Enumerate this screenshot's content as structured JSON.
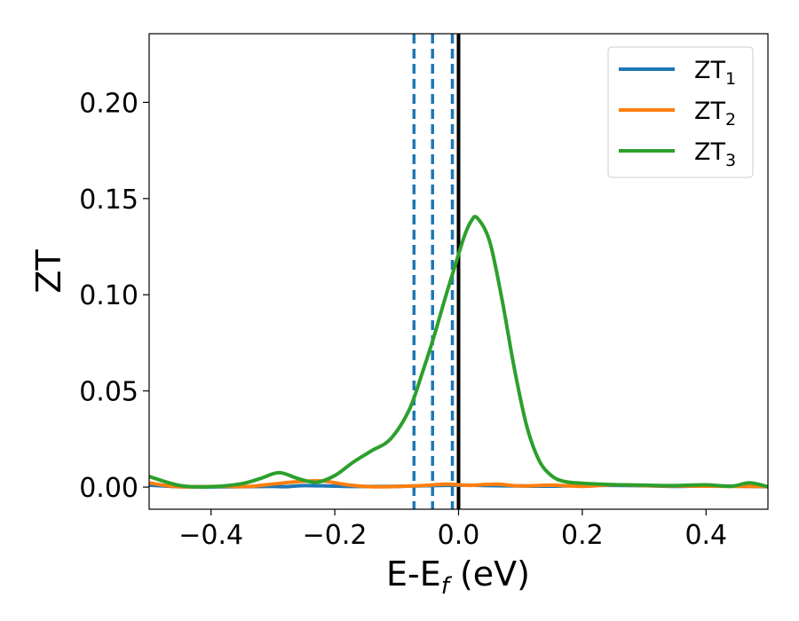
{
  "chart_data": {
    "type": "line",
    "xlabel_main": "E-E",
    "xlabel_sub": "f",
    "xlabel_unit": " (eV)",
    "ylabel": "ZT",
    "xlim": [
      -0.5,
      0.5
    ],
    "ylim": [
      -0.0115,
      0.2357
    ],
    "xticks": [
      -0.4,
      -0.2,
      0.0,
      0.2,
      0.4
    ],
    "xtick_labels": [
      "−0.4",
      "−0.2",
      "0.0",
      "0.2",
      "0.4"
    ],
    "yticks": [
      0.0,
      0.05,
      0.1,
      0.15,
      0.2
    ],
    "ytick_labels": [
      "0.00",
      "0.05",
      "0.10",
      "0.15",
      "0.20"
    ],
    "grid": false,
    "legend_position": "top-right",
    "series": [
      {
        "name_main": "ZT",
        "name_sub": "1",
        "color": "#1f77b4",
        "x": [
          -0.5,
          -0.45,
          -0.4,
          -0.35,
          -0.3,
          -0.28,
          -0.25,
          -0.2,
          -0.15,
          -0.1,
          -0.05,
          0.0,
          0.05,
          0.1,
          0.15,
          0.2,
          0.25,
          0.3,
          0.35,
          0.4,
          0.45,
          0.5
        ],
        "y": [
          0.001,
          0.0002,
          0.0001,
          0.0002,
          0.0004,
          0.0002,
          0.0008,
          0.0005,
          0.0003,
          0.0004,
          0.0007,
          0.001,
          0.0008,
          0.0006,
          0.0005,
          0.0008,
          0.0009,
          0.0007,
          0.0004,
          0.0006,
          0.0005,
          0.0002
        ]
      },
      {
        "name_main": "ZT",
        "name_sub": "2",
        "color": "#ff7f0e",
        "x": [
          -0.5,
          -0.46,
          -0.42,
          -0.38,
          -0.34,
          -0.3,
          -0.26,
          -0.22,
          -0.18,
          -0.14,
          -0.1,
          -0.06,
          -0.02,
          0.0,
          0.02,
          0.06,
          0.1,
          0.15,
          0.2,
          0.25,
          0.3,
          0.35,
          0.4,
          0.45,
          0.5
        ],
        "y": [
          0.0022,
          0.0003,
          0.0002,
          0.0004,
          0.0003,
          0.0016,
          0.0028,
          0.0032,
          0.0012,
          0.0002,
          0.0003,
          0.0008,
          0.0015,
          0.0012,
          0.0009,
          0.0015,
          0.0006,
          0.001,
          0.0004,
          0.0012,
          0.0008,
          0.0006,
          0.0005,
          0.0004,
          0.0003
        ]
      },
      {
        "name_main": "ZT",
        "name_sub": "3",
        "color": "#2ca02c",
        "x": [
          -0.5,
          -0.45,
          -0.4,
          -0.35,
          -0.32,
          -0.29,
          -0.26,
          -0.23,
          -0.2,
          -0.17,
          -0.14,
          -0.11,
          -0.08,
          -0.06,
          -0.04,
          -0.02,
          0.0,
          0.01,
          0.02,
          0.03,
          0.05,
          0.07,
          0.09,
          0.11,
          0.13,
          0.15,
          0.17,
          0.2,
          0.25,
          0.3,
          0.35,
          0.4,
          0.44,
          0.47,
          0.5
        ],
        "y": [
          0.0055,
          0.0008,
          0.0002,
          0.0018,
          0.0045,
          0.0075,
          0.0045,
          0.0025,
          0.006,
          0.013,
          0.019,
          0.025,
          0.04,
          0.058,
          0.078,
          0.1,
          0.121,
          0.131,
          0.138,
          0.14,
          0.128,
          0.098,
          0.062,
          0.032,
          0.014,
          0.006,
          0.003,
          0.002,
          0.0013,
          0.001,
          0.0008,
          0.0012,
          0.0004,
          0.0022,
          0.0002
        ]
      }
    ],
    "vlines": [
      {
        "x": -0.072,
        "color": "#1f77b4",
        "style": "dashed"
      },
      {
        "x": -0.042,
        "color": "#1f77b4",
        "style": "dashed"
      },
      {
        "x": -0.01,
        "color": "#1f77b4",
        "style": "dashed"
      },
      {
        "x": 0.0,
        "color": "#000000",
        "style": "solid"
      }
    ]
  }
}
